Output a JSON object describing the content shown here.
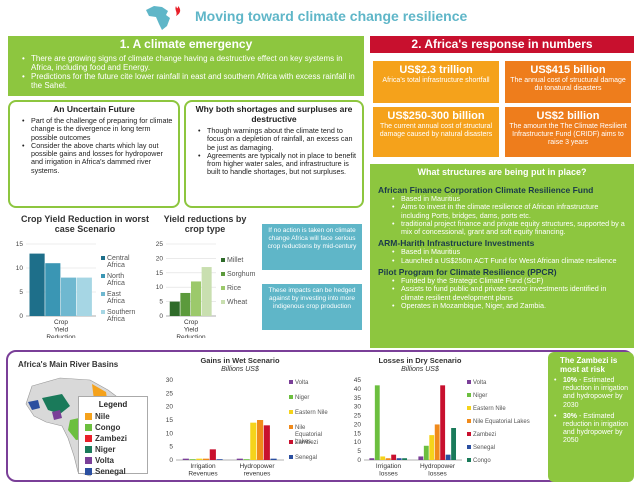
{
  "header": {
    "title": "Moving toward climate change resilience"
  },
  "emergency": {
    "heading": "1. A climate emergency",
    "bullets": [
      "There are growing signs  of climate change having a destructive effect on key systems in Africa, including food and Energy.",
      "Predictions for the future cite lower rainfall in east and southern Africa with excess rainfall in the Sahel."
    ]
  },
  "uncertain": {
    "heading": "An Uncertain Future",
    "bullets": [
      "Part of the challenge of preparing for climate change is the divergence in long term possible outcomes",
      "Consider the above charts which lay out possible gains and losses for hydropower and irrigation in Africa's dammed river systems."
    ]
  },
  "destructive": {
    "heading": "Why both shortages and surpluses are destructive",
    "bullets": [
      "Though warnings about the climate tend to focus on a depletion of rainfall, an excess can be just as damaging.",
      "Agreements are  typically not in place to benefit from higher water sales, and infrastructure is built to handle shortages, but not surpluses."
    ]
  },
  "response": {
    "heading": "2. Africa's response in numbers",
    "stats": [
      {
        "big": "US$2.3 trillion",
        "small": "Africa's total infrastructure shortfall"
      },
      {
        "big": "US$415 billion",
        "small": "The annual cost of structural damage du tonatural disasters"
      },
      {
        "big": "US$250-300 billion",
        "small": "The current  annual cost of structural damage caused by natural disasters"
      },
      {
        "big": "US$2 billion",
        "small": "The amount the The Climate Resilient Infrastructure Fund (CRIDF)  aims to raise 3 years"
      }
    ]
  },
  "structures": {
    "heading": "What structures are being put in place?",
    "funds": [
      {
        "name": "African Finance Corporation Climate Resilience Fund",
        "bullets": [
          "Based in Mauritius",
          "Aims to invest in the climate resilience of African infrastructure including Ports, bridges, dams, ports etc.",
          "traditional project finance and private equity structures, supported by a mix of concessional, grant and soft equity financing."
        ]
      },
      {
        "name": "ARM-Harith Infrastructure Investments",
        "bullets": [
          "Based in Mauritius",
          "Launched a US$250m ACT Fund for West African climate resilience"
        ]
      },
      {
        "name": "Pilot Program for Climate Resilience (PPCR)",
        "bullets": [
          "Funded by the Strategic Climate Fund (SCF)",
          "Assists to fund public and private sector investments identified in climate resilient development plans",
          "Operates in Mozambique, Niger, and Zambia."
        ]
      }
    ]
  },
  "notes": {
    "no_action": "If no action is taken on climate change Africa will face serious crop reductions by mid-century",
    "hedged": "These impacts can be hedged against by investing into more indigenous crop production"
  },
  "rivers": {
    "title": "Africa's Main River Basins",
    "legend_title": "Legend",
    "legend": [
      {
        "name": "Nile",
        "color": "#f5a21b"
      },
      {
        "name": "Congo",
        "color": "#6cbf3f"
      },
      {
        "name": "Zambezi",
        "color": "#e8202a"
      },
      {
        "name": "Niger",
        "color": "#1a7a5a"
      },
      {
        "name": "Volta",
        "color": "#7a3f98"
      },
      {
        "name": "Senegal",
        "color": "#2b4fa0"
      }
    ]
  },
  "zambezi": {
    "title": "The Zambezi is most at risk",
    "bullets": [
      {
        "pct": "10%",
        "text": " - Estimated reduction in irrigation and hydropower by 2030"
      },
      {
        "pct": "30%",
        "text": " - Estimated reduction in irrigation and hydropower by 2050"
      }
    ]
  },
  "chart_data": [
    {
      "type": "bar",
      "title": "Crop Yield Reduction in worst case Scenario",
      "categories": [
        "Crop Yield Reduction"
      ],
      "series": [
        {
          "name": "Central Africa",
          "values": [
            13
          ],
          "color": "#1e6f8a"
        },
        {
          "name": "North Africa",
          "values": [
            11
          ],
          "color": "#3a96b4"
        },
        {
          "name": "East Africa",
          "values": [
            8
          ],
          "color": "#6fb8d0"
        },
        {
          "name": "Southern Africa",
          "values": [
            8
          ],
          "color": "#a6d6e4"
        }
      ],
      "ylim": [
        0,
        15
      ],
      "yticks": [
        0,
        5,
        10,
        15
      ],
      "grid": true,
      "legend": "right"
    },
    {
      "type": "bar",
      "title": "Yield reductions by crop type",
      "categories": [
        "Crop Yield Reduction"
      ],
      "series": [
        {
          "name": "Millet",
          "values": [
            5
          ],
          "color": "#2f6b2a"
        },
        {
          "name": "Sorghum",
          "values": [
            8
          ],
          "color": "#5c9a3c"
        },
        {
          "name": "Rice",
          "values": [
            12
          ],
          "color": "#9cc96b"
        },
        {
          "name": "Wheat",
          "values": [
            17
          ],
          "color": "#c9dfb0"
        }
      ],
      "ylim": [
        0,
        25
      ],
      "yticks": [
        0,
        5,
        10,
        15,
        20,
        25
      ],
      "grid": true,
      "legend": "right"
    },
    {
      "type": "bar",
      "title": "Gains in Wet Scenario",
      "subtitle": "Billions US$",
      "categories": [
        "Irrigation Revenues",
        "Hydropower revenues"
      ],
      "series": [
        {
          "name": "Volta",
          "values": [
            0.5,
            0.5
          ],
          "color": "#7a3f98"
        },
        {
          "name": "Niger",
          "values": [
            0.3,
            0.3
          ],
          "color": "#6cbf3f"
        },
        {
          "name": "Eastern Nile",
          "values": [
            0.5,
            14
          ],
          "color": "#f5d31b"
        },
        {
          "name": "Nile Equatorial Lakes",
          "values": [
            0.5,
            15
          ],
          "color": "#f08a1b"
        },
        {
          "name": "Zambezi",
          "values": [
            4,
            13
          ],
          "color": "#c8102e"
        },
        {
          "name": "Senegal",
          "values": [
            0.3,
            0.5
          ],
          "color": "#2b4fa0"
        }
      ],
      "ylim": [
        0,
        30
      ],
      "yticks": [
        0,
        5,
        10,
        15,
        20,
        25,
        30
      ],
      "legend": "right"
    },
    {
      "type": "bar",
      "title": "Losses in Dry Scenario",
      "subtitle": "Billions US$",
      "categories": [
        "Irrigation losses",
        "Hydropower losses"
      ],
      "series": [
        {
          "name": "Volta",
          "values": [
            1,
            2
          ],
          "color": "#7a3f98"
        },
        {
          "name": "Niger",
          "values": [
            42,
            8
          ],
          "color": "#6cbf3f"
        },
        {
          "name": "Eastern Nile",
          "values": [
            2,
            14
          ],
          "color": "#f5d31b"
        },
        {
          "name": "Nile Equatorial Lakes",
          "values": [
            1,
            20
          ],
          "color": "#f08a1b"
        },
        {
          "name": "Zambezi",
          "values": [
            3,
            42
          ],
          "color": "#c8102e"
        },
        {
          "name": "Senegal",
          "values": [
            1,
            3
          ],
          "color": "#2b4fa0"
        },
        {
          "name": "Congo",
          "values": [
            1,
            18
          ],
          "color": "#1a7a5a"
        }
      ],
      "ylim": [
        0,
        45
      ],
      "yticks": [
        0,
        5,
        10,
        15,
        20,
        25,
        30,
        35,
        40,
        45
      ],
      "legend": "right"
    }
  ]
}
